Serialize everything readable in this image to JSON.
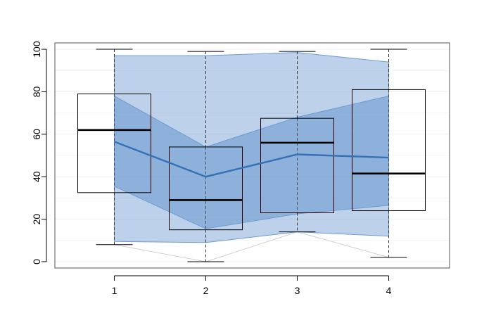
{
  "chart_data": {
    "type": "box",
    "title": "",
    "xlabel": "",
    "ylabel": "",
    "categories": [
      "1",
      "2",
      "3",
      "4"
    ],
    "ylim": [
      -3,
      103
    ],
    "yticks": [
      0,
      20,
      40,
      60,
      80,
      100
    ],
    "grid": true,
    "boxes": [
      {
        "category": "1",
        "min": 8,
        "q1": 32.5,
        "median": 62,
        "q3": 79,
        "max": 100
      },
      {
        "category": "2",
        "min": 0,
        "q1": 15,
        "median": 29,
        "q3": 54,
        "max": 99
      },
      {
        "category": "3",
        "min": 14,
        "q1": 23,
        "median": 56,
        "q3": 67.5,
        "max": 99
      },
      {
        "category": "4",
        "min": 2,
        "q1": 24,
        "median": 41.5,
        "q3": 81,
        "max": 100
      }
    ],
    "bands": {
      "outer": {
        "lower": [
          9.5,
          9,
          14,
          12
        ],
        "upper": [
          97,
          97,
          98.5,
          94
        ]
      },
      "inner": {
        "lower": [
          35.5,
          15.5,
          22.5,
          26.5
        ],
        "upper": [
          78,
          54,
          68,
          78
        ]
      }
    },
    "mean_line": [
      56.5,
      40,
      50.5,
      49
    ],
    "min_line": [
      8,
      0,
      14,
      2
    ],
    "colors": {
      "band": "#6d9bd1",
      "mean_line": "#3572b5",
      "box": "#000000",
      "grid": "#dddddd"
    }
  }
}
